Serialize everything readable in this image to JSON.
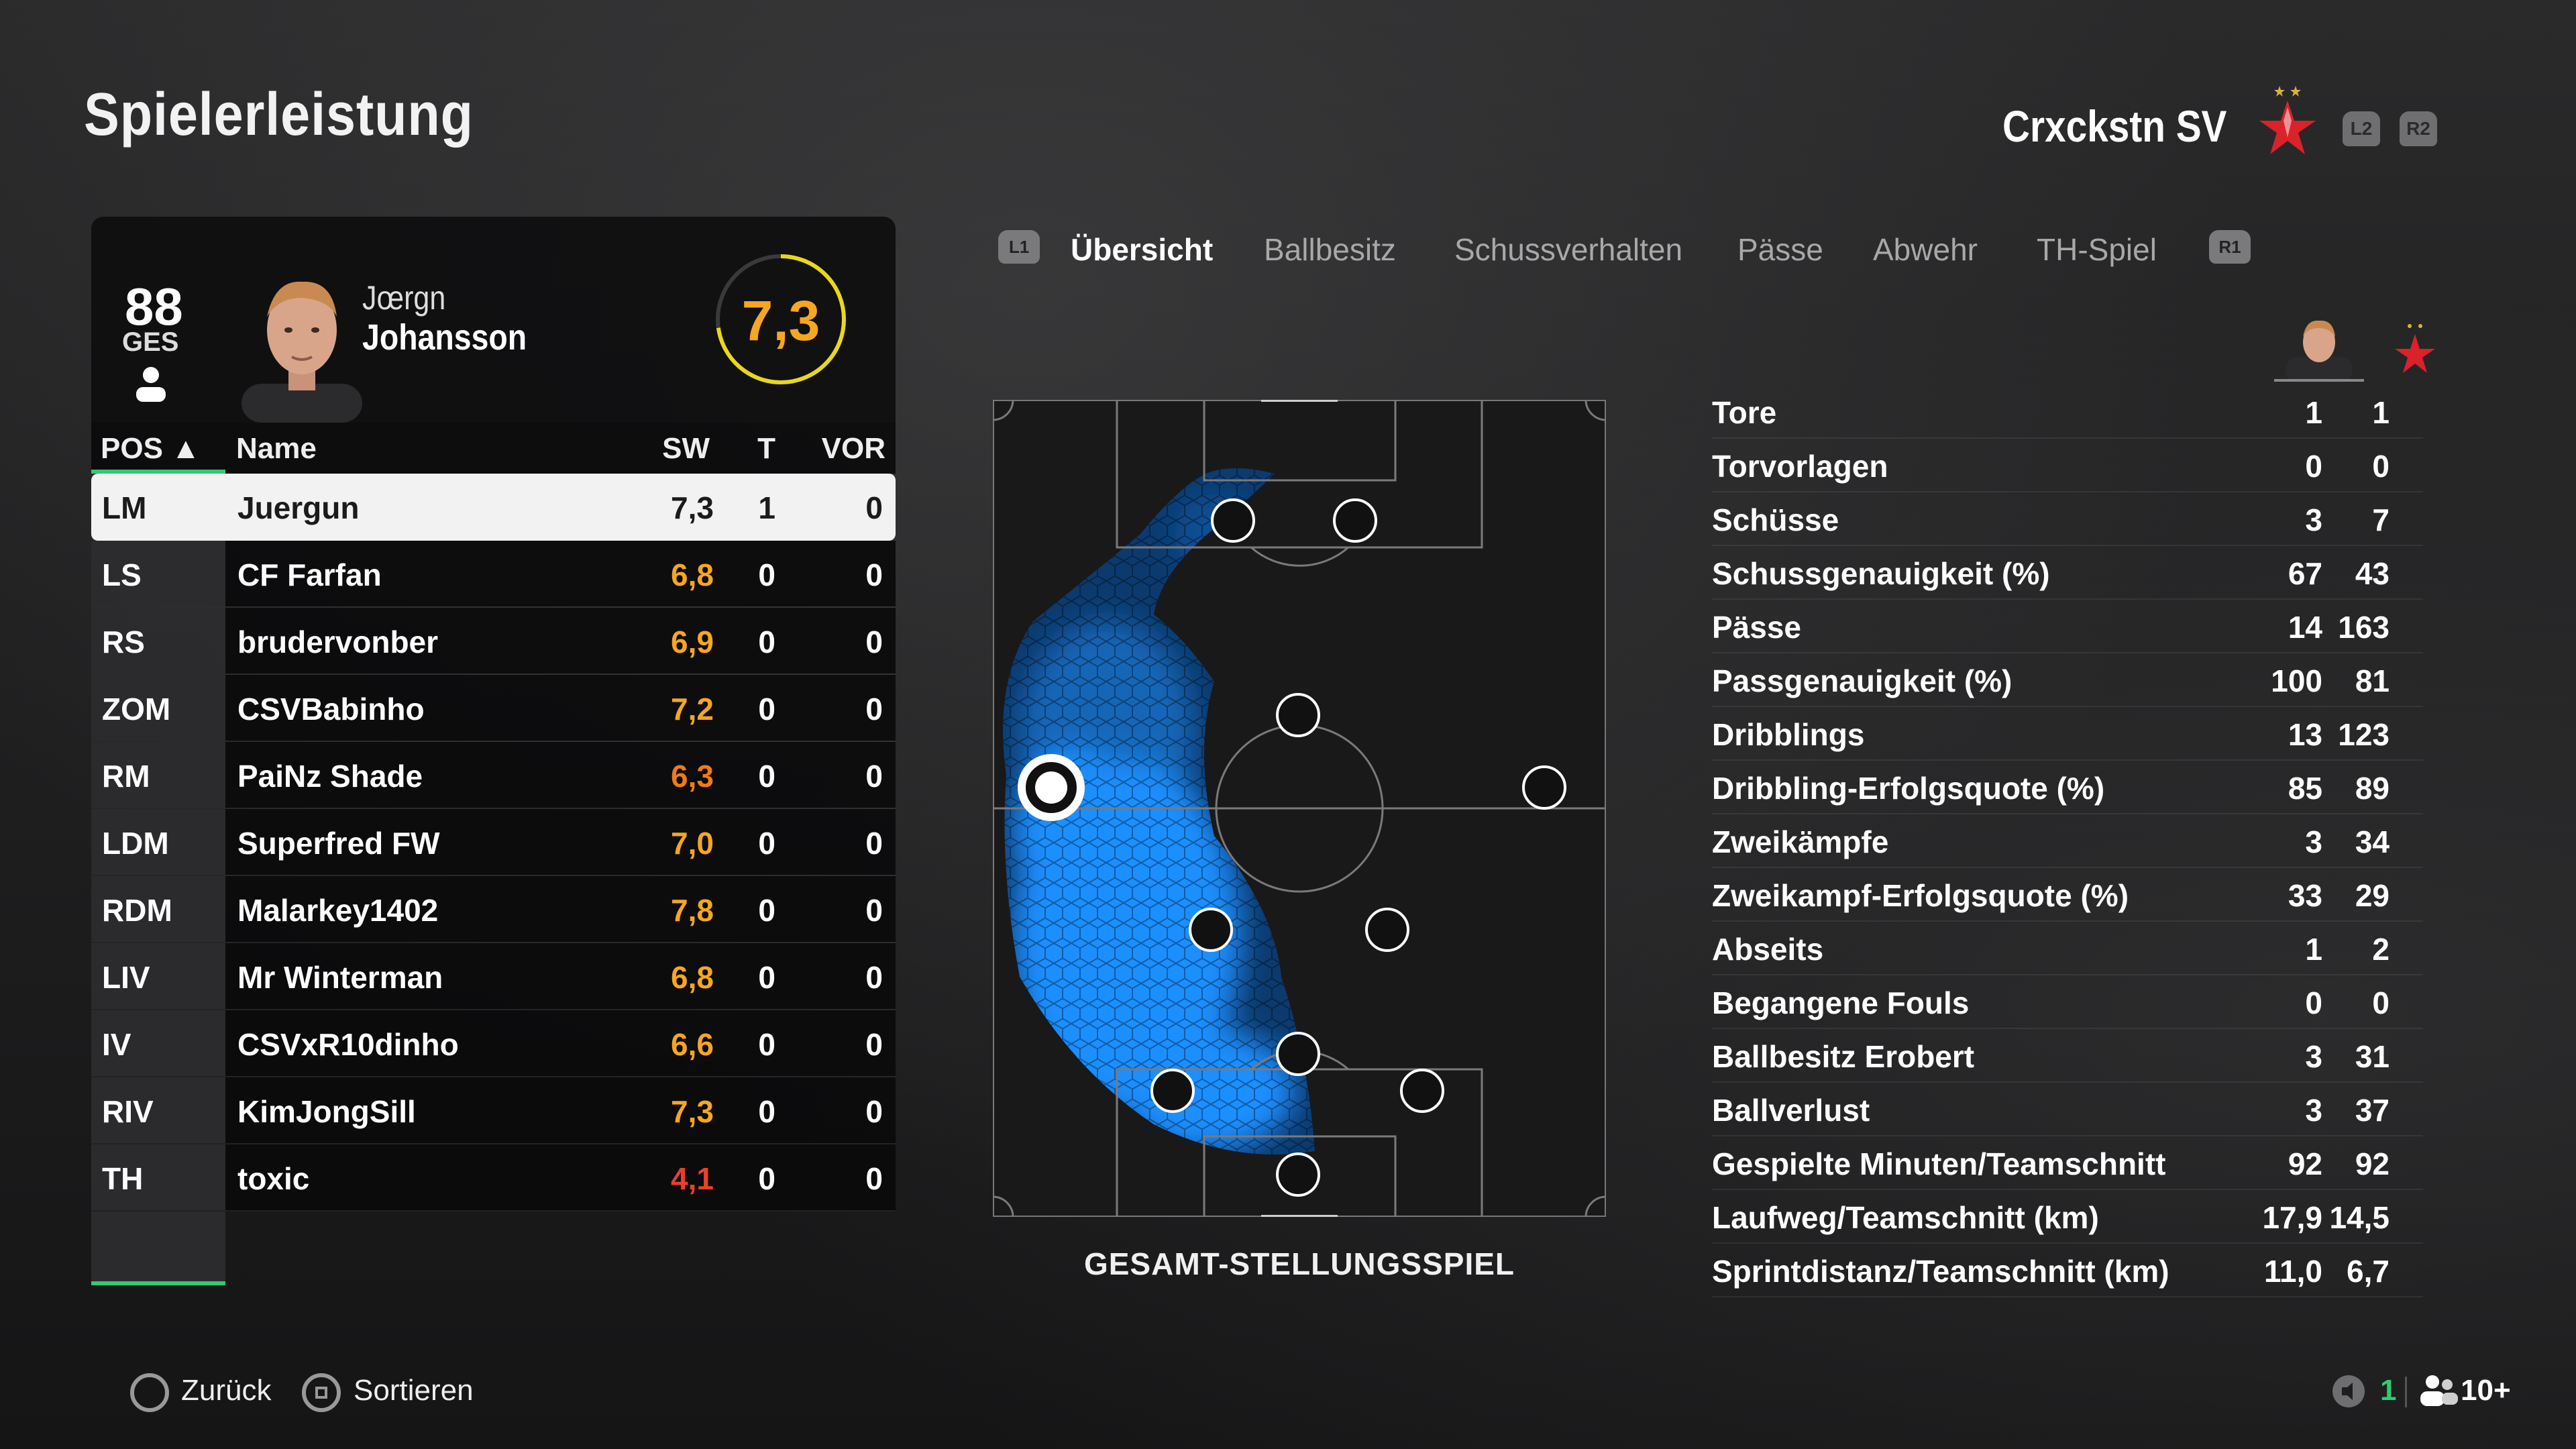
{
  "page": {
    "title": "Spielerleistung"
  },
  "team": {
    "name": "Crxckstn SV",
    "button_l2": "L2",
    "button_r2": "R2"
  },
  "player": {
    "overall": "88",
    "overall_label": "GES",
    "first_name": "Jœrgn",
    "last_name": "Johansson",
    "match_rating": "7,3"
  },
  "table": {
    "headers": {
      "pos": "POS ▲",
      "name": "Name",
      "sw": "SW",
      "t": "T",
      "vor": "VOR"
    },
    "rows": [
      {
        "pos": "LM",
        "name": "Juergun",
        "sw": "7,3",
        "t": "1",
        "vor": "0",
        "selected": true,
        "color": "#1b1b1b"
      },
      {
        "pos": "LS",
        "name": "CF Farfan",
        "sw": "6,8",
        "t": "0",
        "vor": "0",
        "color": "#f5a623"
      },
      {
        "pos": "RS",
        "name": "brudervonber",
        "sw": "6,9",
        "t": "0",
        "vor": "0",
        "color": "#f5a623"
      },
      {
        "pos": "ZOM",
        "name": "CSVBabinho",
        "sw": "7,2",
        "t": "0",
        "vor": "0",
        "color": "#f5a623"
      },
      {
        "pos": "RM",
        "name": "PaiNz Shade",
        "sw": "6,3",
        "t": "0",
        "vor": "0",
        "color": "#f07b1a"
      },
      {
        "pos": "LDM",
        "name": "Superfred FW",
        "sw": "7,0",
        "t": "0",
        "vor": "0",
        "color": "#f5a623"
      },
      {
        "pos": "RDM",
        "name": "Malarkey1402",
        "sw": "7,8",
        "t": "0",
        "vor": "0",
        "color": "#f5a623"
      },
      {
        "pos": "LIV",
        "name": "Mr Winterman",
        "sw": "6,8",
        "t": "0",
        "vor": "0",
        "color": "#f5a623"
      },
      {
        "pos": "IV",
        "name": "CSVxR10dinho",
        "sw": "6,6",
        "t": "0",
        "vor": "0",
        "color": "#f5a623"
      },
      {
        "pos": "RIV",
        "name": "KimJongSill",
        "sw": "7,3",
        "t": "0",
        "vor": "0",
        "color": "#f5a623"
      },
      {
        "pos": "TH",
        "name": "toxic",
        "sw": "4,1",
        "t": "0",
        "vor": "0",
        "color": "#e8412c"
      }
    ]
  },
  "tabs": {
    "left_button": "L1",
    "right_button": "R1",
    "items": [
      "Übersicht",
      "Ballbesitz",
      "Schussverhalten",
      "Pässe",
      "Abwehr",
      "TH-Spiel"
    ],
    "active_index": 0
  },
  "pitch": {
    "caption": "GESAMT-STELLUNGSSPIEL"
  },
  "stats": [
    {
      "label": "Tore",
      "player": "1",
      "team": "1"
    },
    {
      "label": "Torvorlagen",
      "player": "0",
      "team": "0"
    },
    {
      "label": "Schüsse",
      "player": "3",
      "team": "7"
    },
    {
      "label": "Schussgenauigkeit (%)",
      "player": "67",
      "team": "43"
    },
    {
      "label": "Pässe",
      "player": "14",
      "team": "163"
    },
    {
      "label": "Passgenauigkeit (%)",
      "player": "100",
      "team": "81"
    },
    {
      "label": "Dribblings",
      "player": "13",
      "team": "123"
    },
    {
      "label": "Dribbling-Erfolgsquote (%)",
      "player": "85",
      "team": "89"
    },
    {
      "label": "Zweikämpfe",
      "player": "3",
      "team": "34"
    },
    {
      "label": "Zweikampf-Erfolgsquote (%)",
      "player": "33",
      "team": "29"
    },
    {
      "label": "Abseits",
      "player": "1",
      "team": "2"
    },
    {
      "label": "Begangene Fouls",
      "player": "0",
      "team": "0"
    },
    {
      "label": "Ballbesitz Erobert",
      "player": "3",
      "team": "31"
    },
    {
      "label": "Ballverlust",
      "player": "3",
      "team": "37"
    },
    {
      "label": "Gespielte Minuten/Teamschnitt",
      "player": "92",
      "team": "92"
    },
    {
      "label": "Laufweg/Teamschnitt (km)",
      "player": "17,9",
      "team": "14,5"
    },
    {
      "label": "Sprintdistanz/Teamschnitt (km)",
      "player": "11,0",
      "team": "6,7"
    }
  ],
  "footer": {
    "back_label": "Zurück",
    "sort_label": "Sortieren",
    "mic_count": "1",
    "party_count": "10+"
  },
  "colors": {
    "accent_green": "#2ecc71",
    "rating_orange": "#f5a623",
    "heat_blue": "#1e90ff"
  }
}
